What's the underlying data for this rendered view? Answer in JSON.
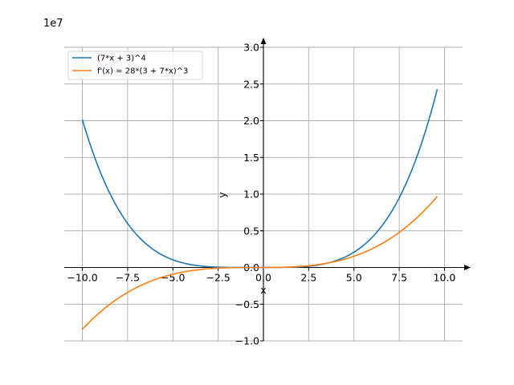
{
  "chart_data": {
    "type": "line",
    "offset_label": "1e7",
    "xlabel": "x",
    "ylabel": "y",
    "xlim": [
      -11,
      11
    ],
    "ylim": [
      -1.0,
      3.0
    ],
    "x_ticks": [
      -10.0,
      -7.5,
      -5.0,
      -2.5,
      0.0,
      2.5,
      5.0,
      7.5,
      10.0
    ],
    "x_tick_labels": [
      "−10.0",
      "−7.5",
      "−5.0",
      "−2.5",
      "0.0",
      "2.5",
      "5.0",
      "7.5",
      "10.0"
    ],
    "y_ticks": [
      -1.0,
      -0.5,
      0.0,
      0.5,
      1.0,
      1.5,
      2.0,
      2.5,
      3.0
    ],
    "y_tick_labels": [
      "−1.0",
      "−0.5",
      "0.0",
      "0.5",
      "1.0",
      "1.5",
      "2.0",
      "2.5",
      "3.0"
    ],
    "grid": true,
    "legend_position": "top-left",
    "x_domain": [
      -10,
      9.6
    ],
    "series": [
      {
        "name": "(7*x + 3)^4",
        "color": "#1f77b4",
        "expr": "pow4"
      },
      {
        "name": "f'(x) = 28*(3 + 7*x)^3",
        "color": "#ff7f0e",
        "expr": "deriv"
      }
    ]
  }
}
